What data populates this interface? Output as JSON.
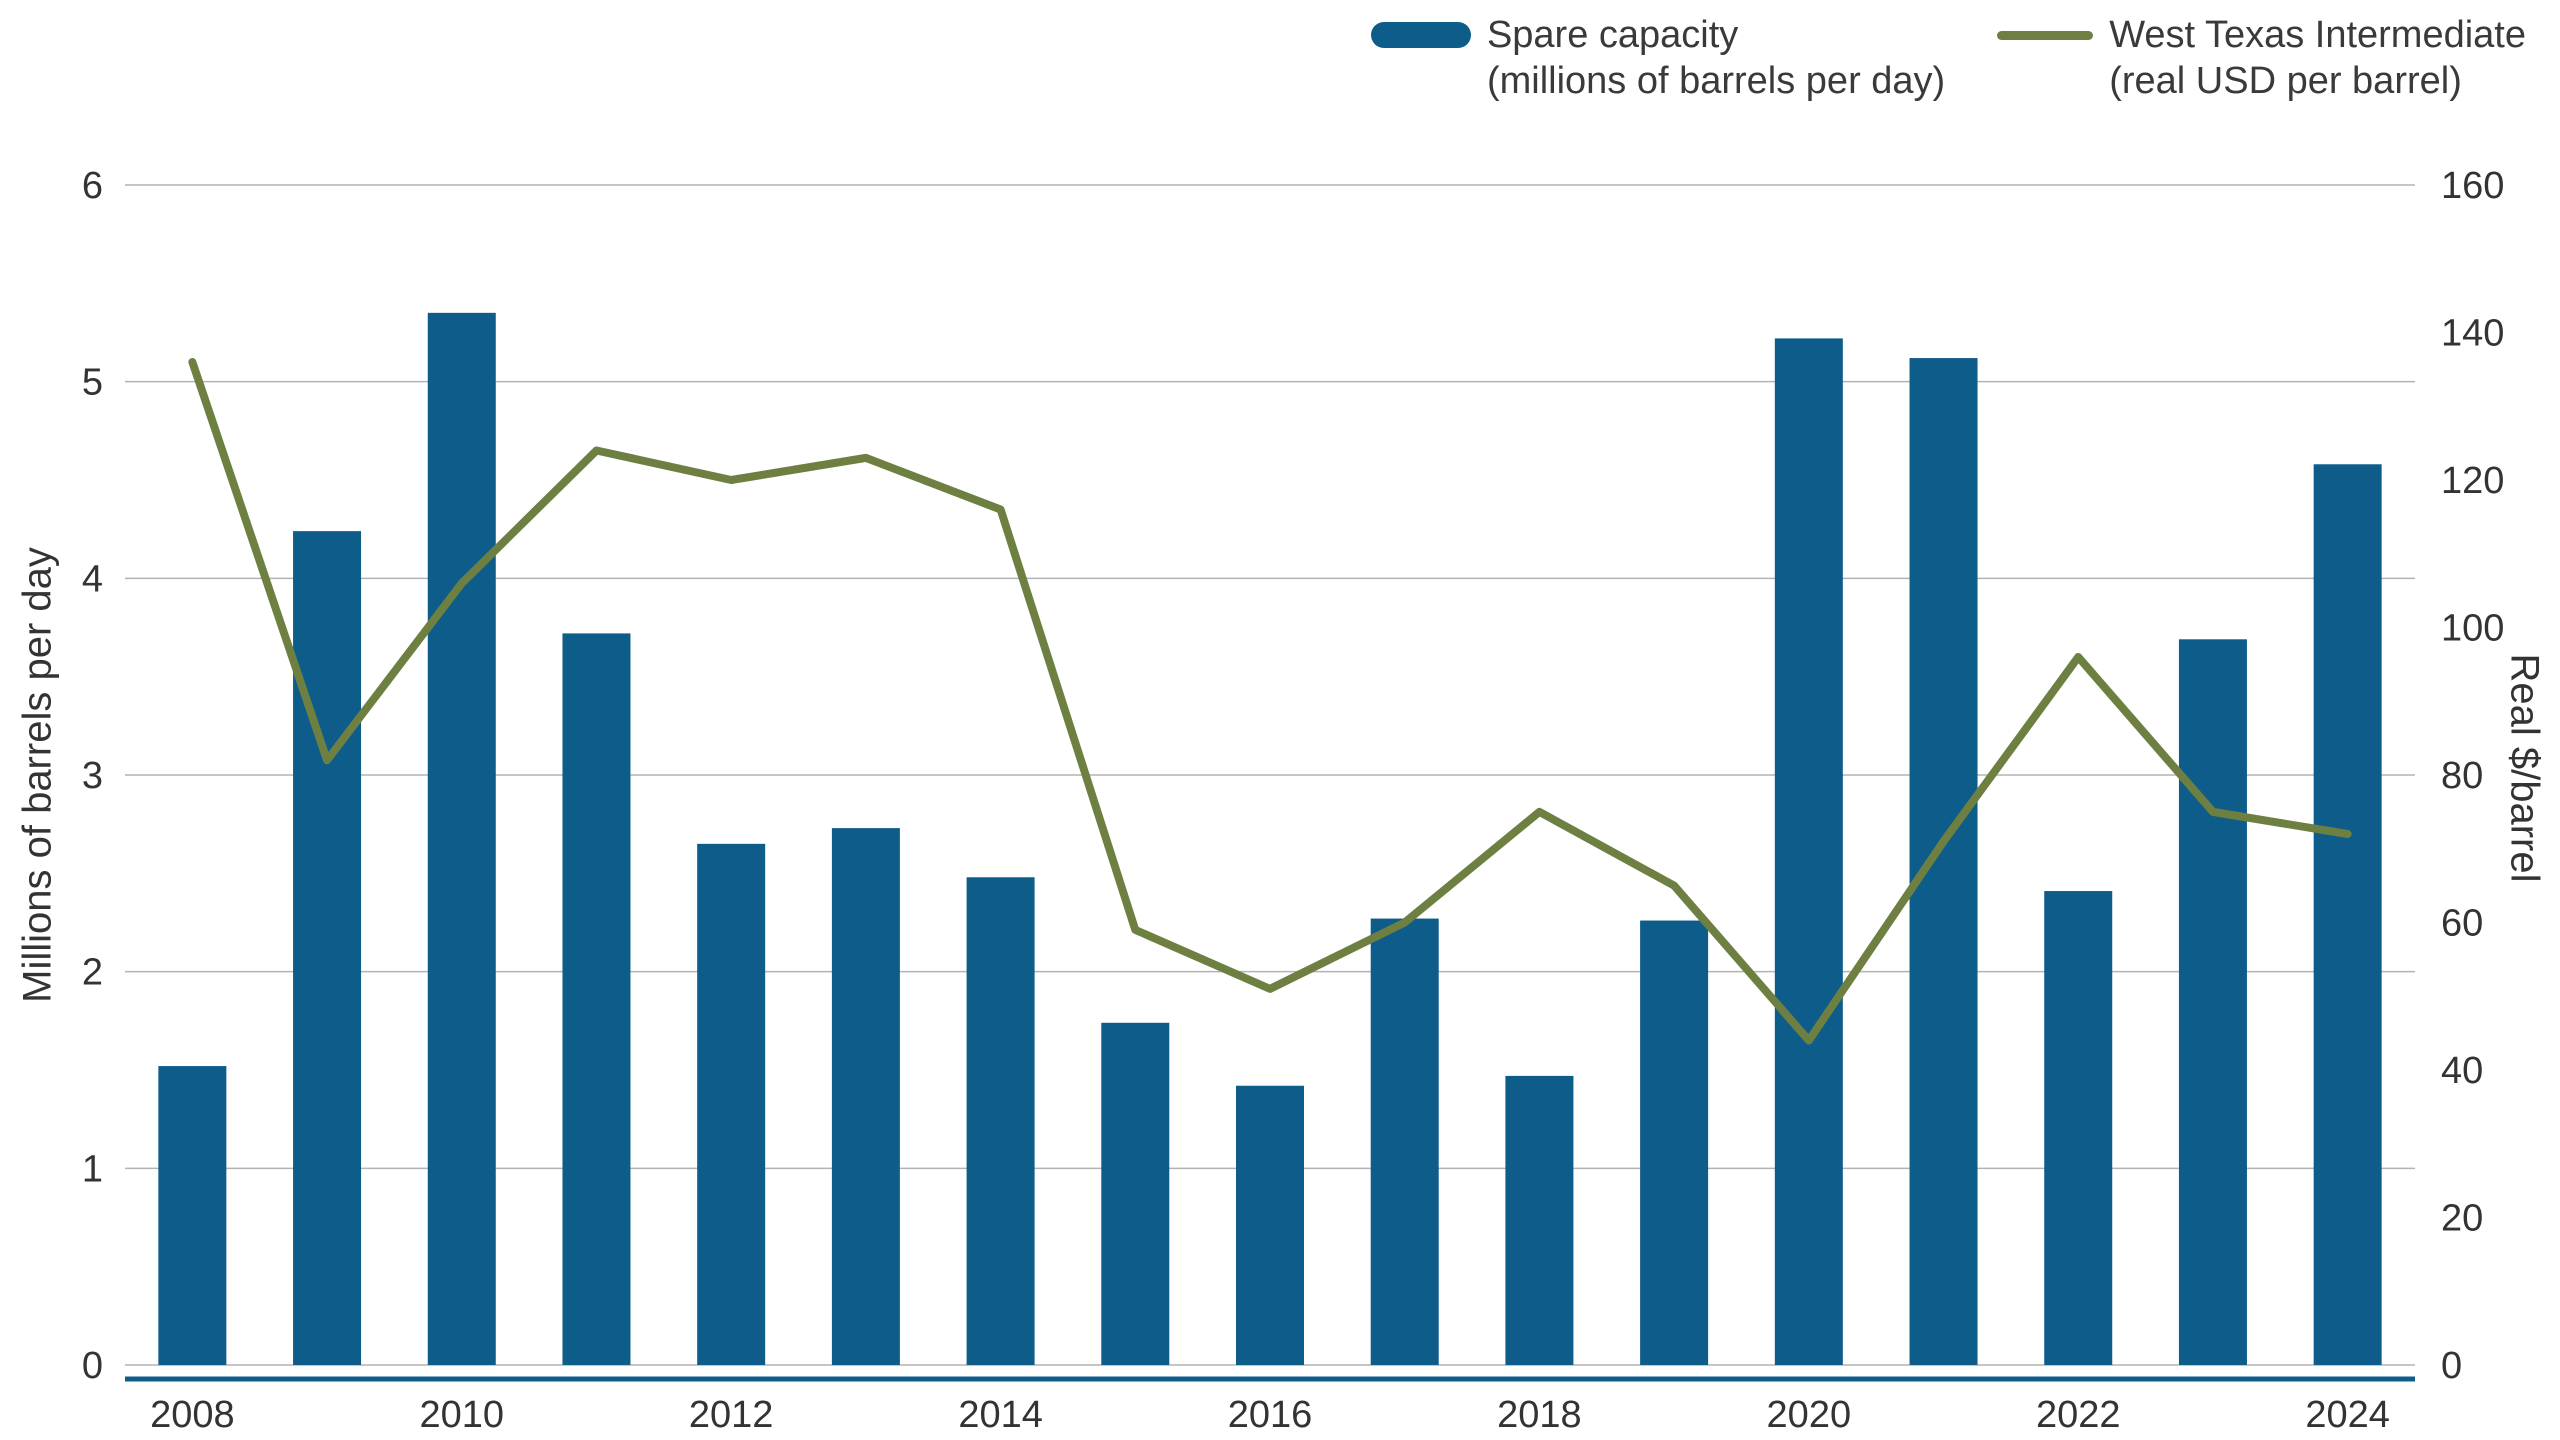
{
  "legend": [
    {
      "label_line1": "Spare capacity",
      "label_line2": "(millions of barrels per day)",
      "color": "#0e5c8a",
      "swatch": "bar"
    },
    {
      "label_line1": "West Texas Intermediate",
      "label_line2": "(real USD per barrel)",
      "color": "#6e8041",
      "swatch": "line"
    }
  ],
  "chart_data": {
    "type": "bar+line",
    "categories": [
      2008,
      2009,
      2010,
      2011,
      2012,
      2013,
      2014,
      2015,
      2016,
      2017,
      2018,
      2019,
      2020,
      2021,
      2022,
      2023,
      2024
    ],
    "series": [
      {
        "name": "Spare capacity (millions of barrels per day)",
        "type": "bar",
        "axis": "left",
        "color": "#0e5c8a",
        "values": [
          1.52,
          4.24,
          5.35,
          3.72,
          2.65,
          2.73,
          2.48,
          1.74,
          1.42,
          2.27,
          1.47,
          2.26,
          5.22,
          5.12,
          2.41,
          3.69,
          4.58
        ]
      },
      {
        "name": "West Texas Intermediate (real USD per barrel)",
        "type": "line",
        "axis": "right",
        "color": "#6e8041",
        "values": [
          136,
          82,
          106,
          124,
          120,
          123,
          116,
          59,
          51,
          60,
          75,
          65,
          44,
          71,
          96,
          75,
          72
        ]
      }
    ],
    "left_axis": {
      "title": "Millions of barrels per day",
      "min": 0,
      "max": 6,
      "step": 1
    },
    "right_axis": {
      "title": "Real $/barrel",
      "min": 0,
      "max": 160,
      "step": 20
    },
    "x_tick_labels": [
      "2008",
      "2010",
      "2012",
      "2014",
      "2016",
      "2018",
      "2020",
      "2022",
      "2024"
    ],
    "grid": "horizontal",
    "gridline_color": "#b3b3b3",
    "axis_line_color": "#0e5c8a",
    "legend_position": "top-right"
  }
}
